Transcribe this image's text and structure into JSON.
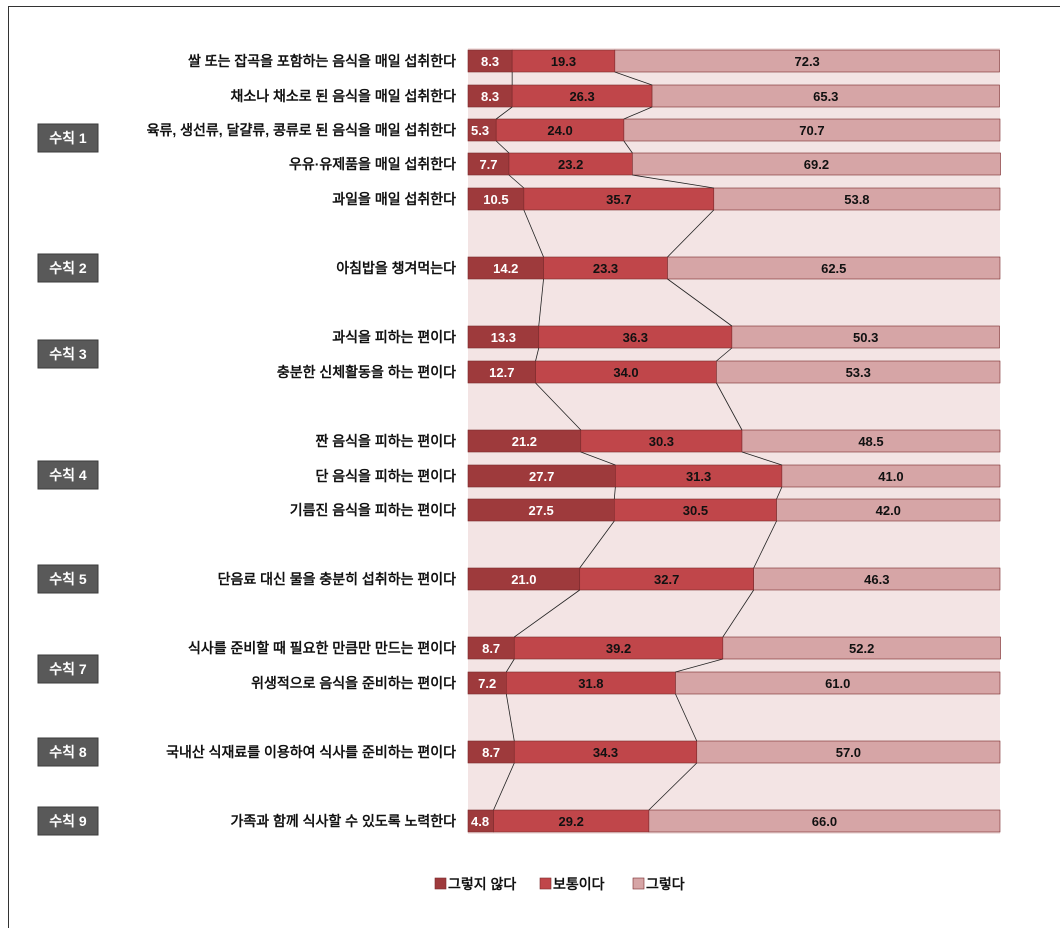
{
  "chart_data": {
    "type": "bar",
    "stacked": true,
    "orientation": "horizontal",
    "percent": true,
    "xlim": [
      0,
      100
    ],
    "categories": [
      "쌀 또는 잡곡을 포함하는 음식을 매일 섭취한다",
      "채소나 채소로 된 음식을 매일 섭취한다",
      "육류, 생선류, 달걀류, 콩류로 된 음식을 매일 섭취한다",
      "우유·유제품을 매일 섭취한다",
      "과일을 매일 섭취한다",
      "아침밥을 챙겨먹는다",
      "과식을 피하는 편이다",
      "충분한 신체활동을 하는 편이다",
      "짠 음식을 피하는 편이다",
      "단 음식을 피하는 편이다",
      "기름진 음식을 피하는 편이다",
      "단음료 대신 물을 충분히 섭취하는 편이다",
      "식사를 준비할 때 필요한 만큼만 만드는 편이다",
      "위생적으로 음식을 준비하는 편이다",
      "국내산 식재료를 이용하여 식사를 준비하는 편이다",
      "가족과 함께 식사할 수 있도록 노력한다"
    ],
    "series": [
      {
        "name": "그렇지 않다",
        "color": "#9e3a3c",
        "values": [
          8.3,
          8.3,
          5.3,
          7.7,
          10.5,
          14.2,
          13.3,
          12.7,
          21.2,
          27.7,
          27.5,
          21.0,
          8.7,
          7.2,
          8.7,
          4.8
        ]
      },
      {
        "name": "보통이다",
        "color": "#c0464a",
        "values": [
          19.3,
          26.3,
          24.0,
          23.2,
          35.7,
          23.3,
          36.3,
          34.0,
          30.3,
          31.3,
          30.5,
          32.7,
          39.2,
          31.8,
          34.3,
          29.2
        ]
      },
      {
        "name": "그렇다",
        "color": "#d6a5a6",
        "values": [
          72.3,
          65.3,
          70.7,
          69.2,
          53.8,
          62.5,
          50.3,
          53.3,
          48.5,
          41.0,
          42.0,
          46.3,
          52.2,
          61.0,
          57.0,
          66.0
        ]
      }
    ],
    "groups": [
      {
        "label": "수칙 1",
        "rows": [
          0,
          1,
          2,
          3,
          4
        ]
      },
      {
        "label": "수칙 2",
        "rows": [
          5
        ]
      },
      {
        "label": "수칙 3",
        "rows": [
          6,
          7
        ]
      },
      {
        "label": "수칙 4",
        "rows": [
          8,
          9,
          10
        ]
      },
      {
        "label": "수칙 5",
        "rows": [
          11
        ]
      },
      {
        "label": "수칙 7",
        "rows": [
          12,
          13
        ]
      },
      {
        "label": "수칙 8",
        "rows": [
          14
        ]
      },
      {
        "label": "수칙 9",
        "rows": [
          15
        ]
      }
    ],
    "legend_position": "bottom-center",
    "grid": false,
    "background_band_color": "#f3e4e4"
  }
}
